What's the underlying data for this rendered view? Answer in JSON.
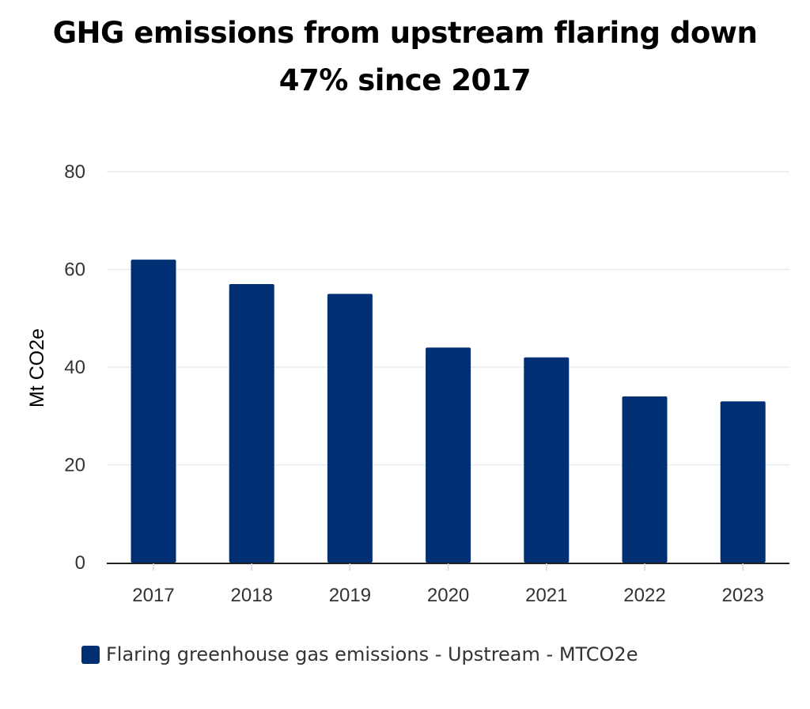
{
  "title_lines": [
    "GHG emissions from upstream flaring down",
    "47% since 2017"
  ],
  "chart_data": {
    "type": "bar",
    "title": "GHG emissions from upstream flaring down 47% since 2017",
    "xlabel": "",
    "ylabel": "Mt CO2e",
    "categories": [
      "2017",
      "2018",
      "2019",
      "2020",
      "2021",
      "2022",
      "2023"
    ],
    "series": [
      {
        "name": "Flaring greenhouse gas emissions - Upstream - MTCO2e",
        "values": [
          62,
          57,
          55,
          44,
          42,
          34,
          33
        ]
      }
    ],
    "ylim": [
      0,
      80
    ],
    "yticks": [
      "0",
      "20",
      "40",
      "60",
      "80"
    ],
    "grid": true,
    "legend_position": "bottom"
  },
  "colors": {
    "bar": "#012f73",
    "grid": "#e6ecf2",
    "axis": "#222222"
  },
  "legend": {
    "label": "Flaring greenhouse gas emissions - Upstream - MTCO2e"
  }
}
